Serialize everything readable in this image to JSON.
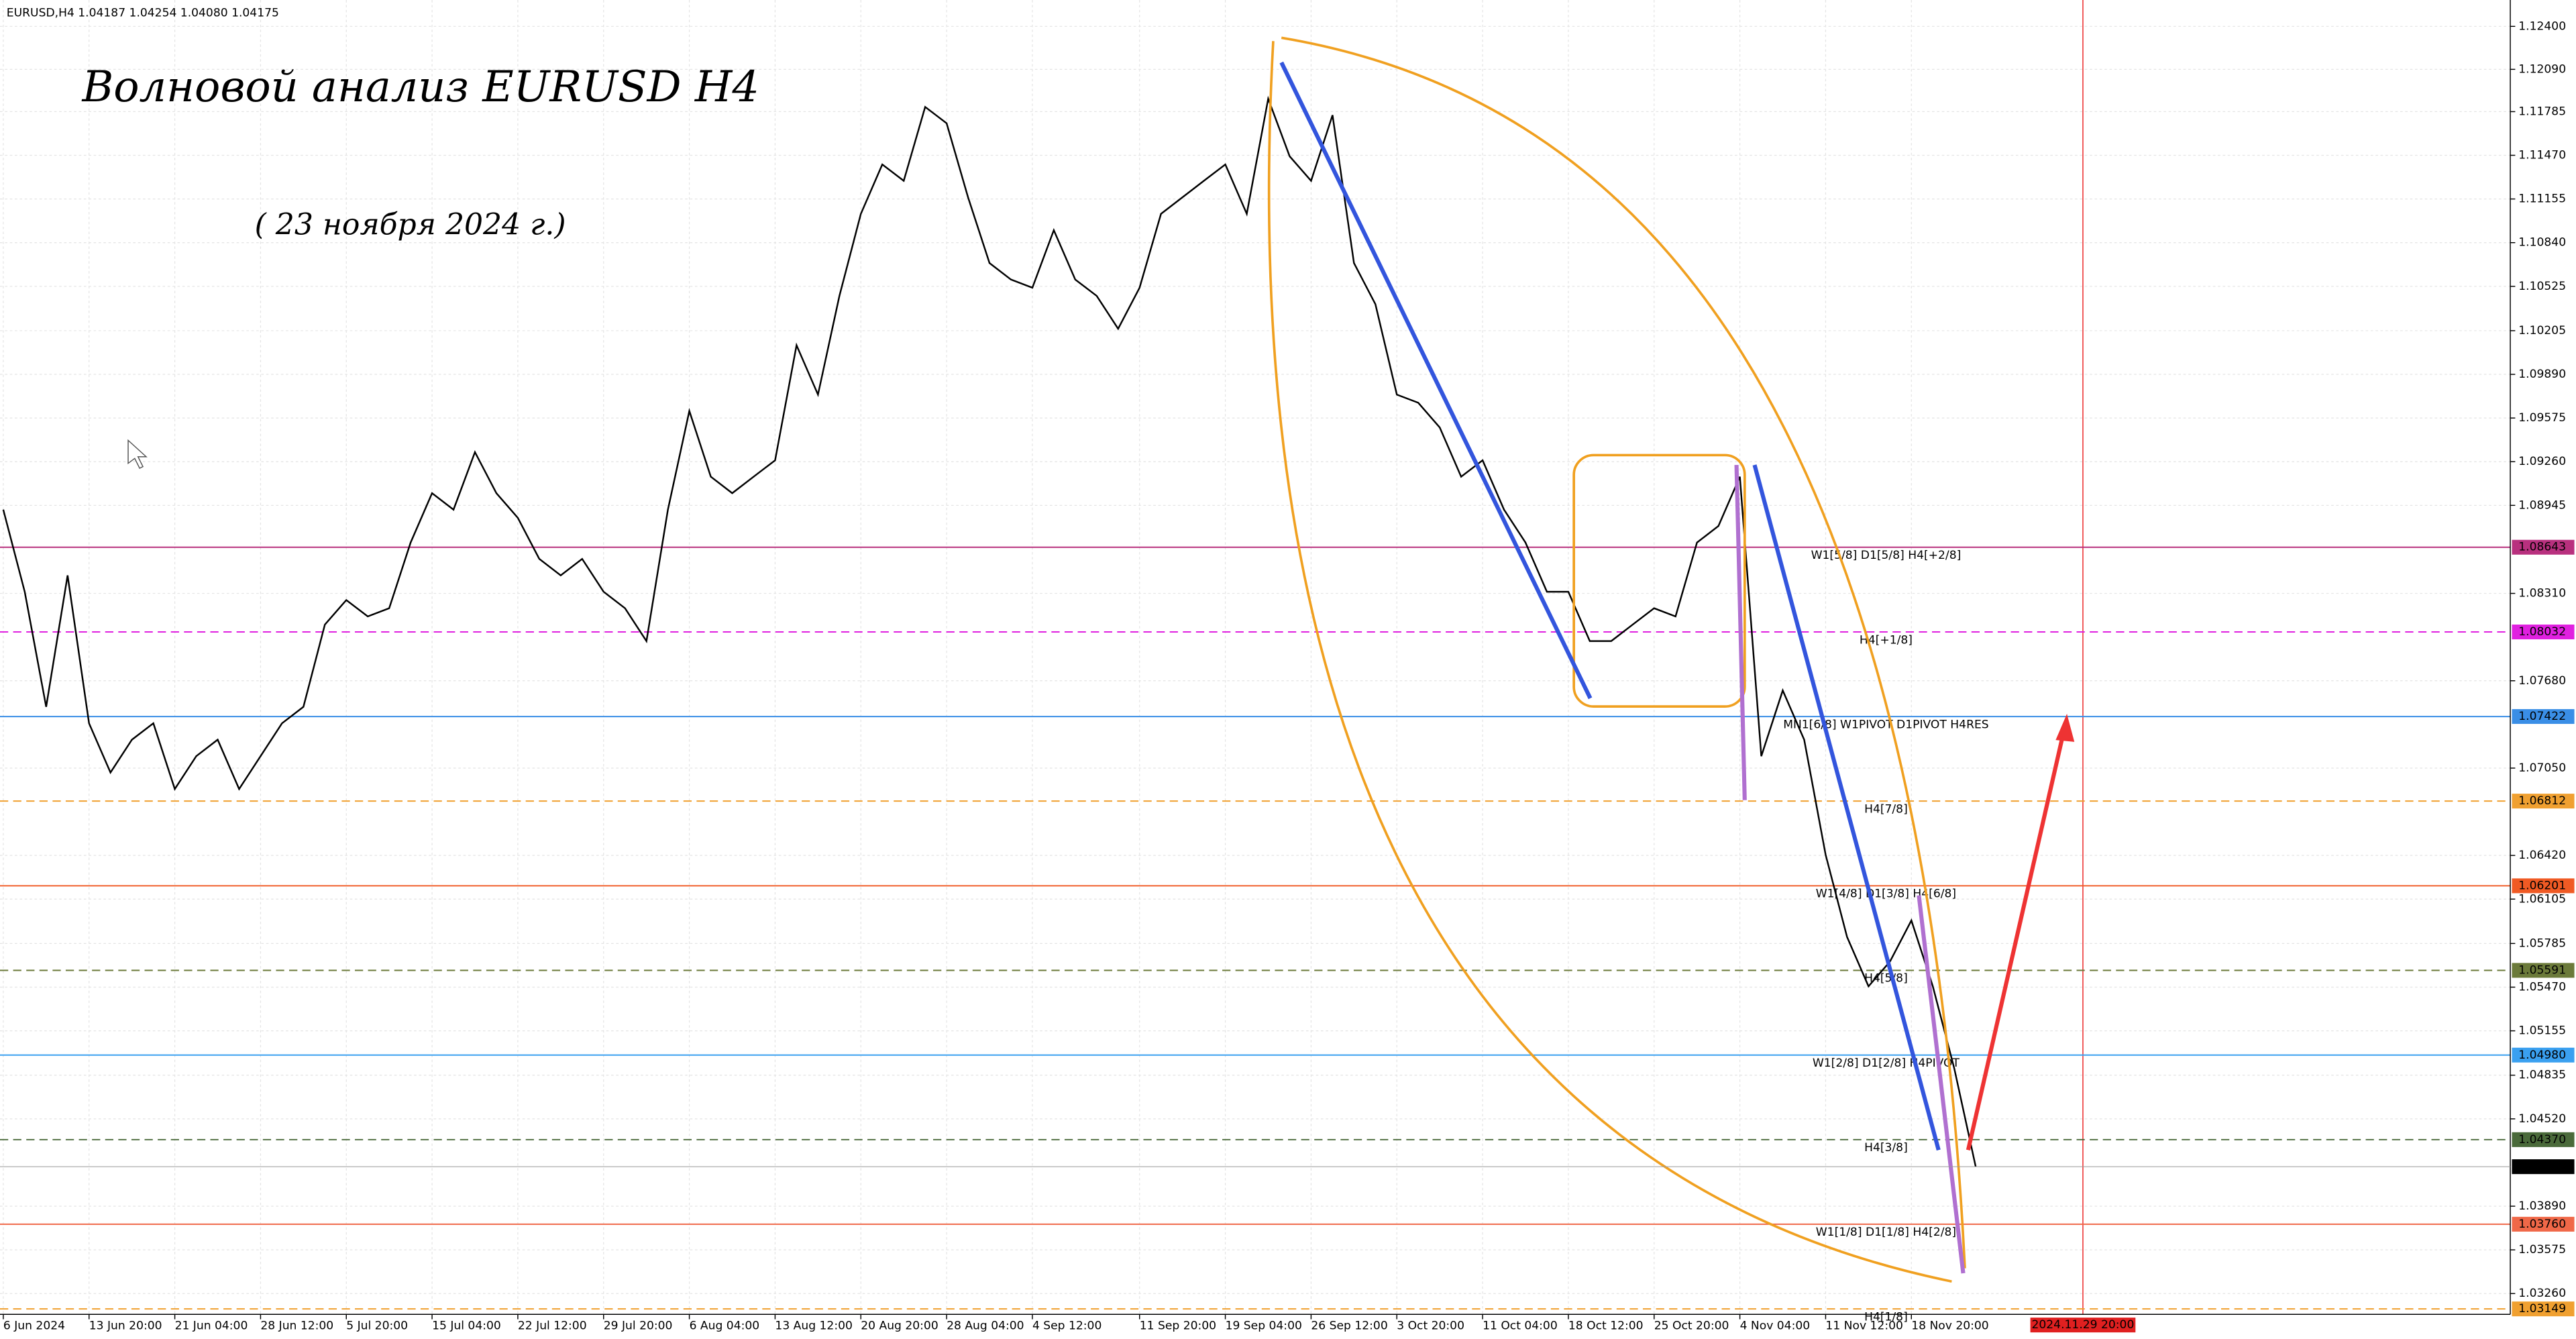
{
  "chart_data": {
    "type": "line",
    "header": "EURUSD,H4  1.04187 1.04254 1.04080 1.04175",
    "title": "Волновой анализ EURUSD H4",
    "subtitle": "( 23 ноября 2024 г.)",
    "categories": [
      "6 Jun 2024",
      null,
      null,
      null,
      "13 Jun 20:00",
      null,
      null,
      null,
      "21 Jun 04:00",
      null,
      null,
      null,
      "28 Jun 12:00",
      null,
      null,
      null,
      "5 Jul 20:00",
      null,
      null,
      null,
      "15 Jul 04:00",
      null,
      null,
      null,
      "22 Jul 12:00",
      null,
      null,
      null,
      "29 Jul 20:00",
      null,
      null,
      null,
      "6 Aug 04:00",
      null,
      null,
      null,
      "13 Aug 12:00",
      null,
      null,
      null,
      "20 Aug 20:00",
      null,
      null,
      null,
      "28 Aug 04:00",
      null,
      null,
      null,
      "4 Sep 12:00",
      null,
      null,
      null,
      null,
      "11 Sep 20:00",
      null,
      null,
      null,
      "19 Sep 04:00",
      null,
      null,
      null,
      "26 Sep 12:00",
      null,
      null,
      null,
      "3 Oct 20:00",
      null,
      null,
      null,
      "11 Oct 04:00",
      null,
      null,
      null,
      "18 Oct 12:00",
      null,
      null,
      null,
      "25 Oct 20:00",
      null,
      null,
      null,
      "4 Nov 04:00",
      null,
      null,
      null,
      "11 Nov 12:00",
      null,
      null,
      null,
      "18 Nov 20:00",
      null,
      null,
      null,
      null,
      null,
      null,
      null,
      "2024.11.29 20:00",
      null,
      null,
      null,
      null,
      null,
      null,
      null,
      null,
      null,
      null,
      null,
      null,
      null,
      null,
      null,
      null,
      null,
      null,
      null,
      null
    ],
    "series": [
      {
        "name": "EURUSD,H4",
        "color": "#000000",
        "values": [
          1.08914,
          1.08322,
          1.07492,
          1.0844,
          1.07373,
          1.07018,
          1.07255,
          1.07373,
          1.06899,
          1.07136,
          1.07255,
          1.06899,
          1.07136,
          1.07373,
          1.07492,
          1.08085,
          1.08262,
          1.08144,
          1.08203,
          1.08677,
          1.09033,
          1.08914,
          1.09329,
          1.09033,
          1.08855,
          1.08559,
          1.0844,
          1.08559,
          1.08322,
          1.08203,
          1.07966,
          1.08914,
          1.09626,
          1.09152,
          1.09033,
          1.09152,
          1.0927,
          1.101,
          1.09744,
          1.10456,
          1.11048,
          1.11404,
          1.11286,
          1.11819,
          1.11701,
          1.11167,
          1.10693,
          1.10574,
          1.10515,
          1.1093,
          1.10574,
          1.10456,
          1.10219,
          1.10515,
          1.11048,
          1.11167,
          1.11286,
          1.11404,
          1.11048,
          1.11878,
          1.11463,
          1.11286,
          1.1176,
          1.10693,
          1.10396,
          1.09744,
          1.09685,
          1.09507,
          1.09152,
          1.0927,
          1.08914,
          1.08677,
          1.08322,
          1.08322,
          1.07966,
          1.07966,
          1.08085,
          1.08203,
          1.08144,
          1.08677,
          1.08796,
          1.09152,
          1.07136,
          1.0761,
          1.07255,
          1.06425,
          1.05832,
          1.05476,
          1.05654,
          1.05951,
          1.05476,
          1.04884,
          1.04175,
          null,
          null,
          null,
          null,
          null,
          null,
          null,
          null,
          null,
          null,
          null,
          null,
          null,
          null,
          null,
          null,
          null,
          null,
          null,
          null,
          null,
          null,
          null,
          null,
          null
        ]
      }
    ],
    "last_price": 1.04175,
    "ylim": [
      1.0311,
      1.1259
    ],
    "yticks": [
      {
        "value": 1.124,
        "label": "1.12400"
      },
      {
        "value": 1.1209,
        "label": "1.12090"
      },
      1.11785,
      {
        "value": 1.1147,
        "label": "1.11470"
      },
      1.11155,
      {
        "value": 1.1084,
        "label": "1.10840"
      },
      1.10525,
      1.10205,
      {
        "value": 1.0989,
        "label": "1.09890"
      },
      1.09575,
      {
        "value": 1.0926,
        "label": "1.09260"
      },
      1.08945,
      {
        "value": 1.0831,
        "label": "1.08310"
      },
      {
        "value": 1.0768,
        "label": "1.07680"
      },
      {
        "value": 1.0705,
        "label": "1.07050"
      },
      {
        "value": 1.0642,
        "label": "1.06420"
      },
      1.06105,
      1.05785,
      {
        "value": 1.0547,
        "label": "1.05470"
      },
      1.05155,
      1.04835,
      {
        "value": 1.0452,
        "label": "1.04520"
      },
      {
        "value": 1.0389,
        "label": "1.03890"
      },
      1.03575,
      {
        "value": 1.0326,
        "label": "1.03260"
      }
    ],
    "grid": true,
    "marker_date_index": 97,
    "levels": {
      "names": [
        "W1[5/8] D1[5/8] H4[+2/8]",
        "H4[+1/8]",
        "MN1[6/8] W1PIVOT D1PIVOT H4RES",
        "H4[7/8]",
        "W1[4/8] D1[3/8] H4[6/8]",
        "H4[5/8]",
        "W1[2/8] D1[2/8] H4PIVOT",
        "H4[3/8]",
        "W1[1/8] D1[1/8] H4[2/8]",
        "H4[1/8]"
      ],
      "values": [
        1.08643,
        1.08032,
        1.07422,
        1.06812,
        1.06201,
        1.05591,
        1.0498,
        1.0437,
        1.0376,
        1.03149
      ],
      "value_labels": [
        "1.08643",
        "1.08032",
        "1.07422",
        "1.06812",
        "1.06201",
        "1.05591",
        "1.04980",
        "1.04370",
        "1.03760",
        "1.03149"
      ],
      "colors": [
        "#b8307e",
        "#e020e0",
        "#3a8ee6",
        "#f0a030",
        "#f05a24",
        "#6b7a3a",
        "#3aa0f0",
        "#4a6a3a",
        "#f06848",
        "#f0a030"
      ],
      "dashed": [
        false,
        true,
        false,
        true,
        false,
        true,
        false,
        true,
        false,
        true
      ]
    }
  }
}
